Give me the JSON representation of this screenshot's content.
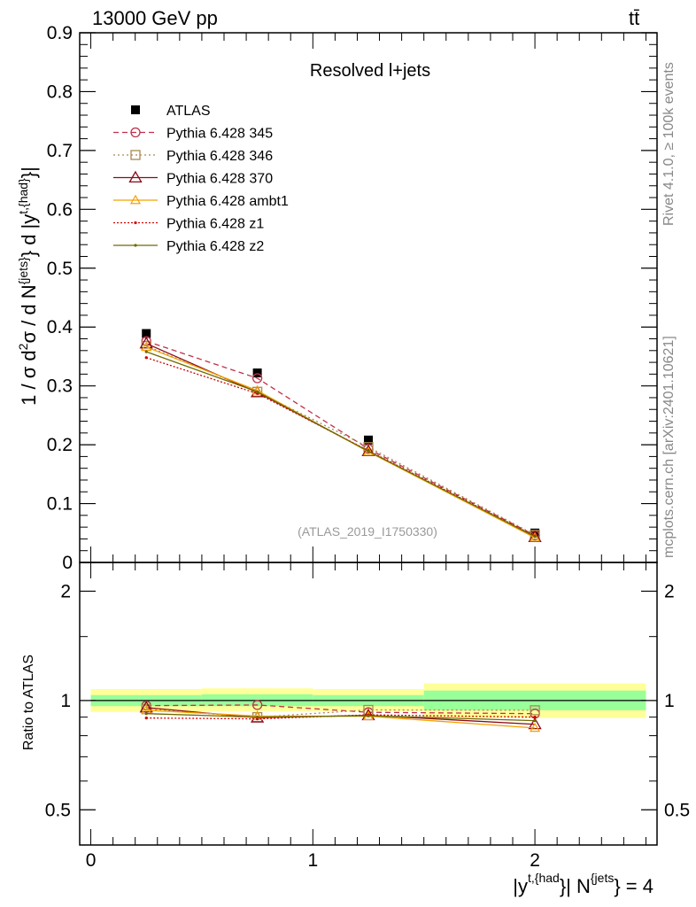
{
  "header": {
    "energy_label": "13000 GeV pp",
    "process_label": "tt̄"
  },
  "side_labels": {
    "rivet": "Rivet 4.1.0, ≥ 100k events",
    "mcplots": "mcplots.cern.ch [arXiv:2401.10621]"
  },
  "analysis_ref": "(ATLAS_2019_I1750330)",
  "colors": {
    "ATLAS": "#000000",
    "Pythia 6.428 345": "#c0304a",
    "Pythia 6.428 346": "#a88a50",
    "Pythia 6.428 370": "#8b0a1a",
    "Pythia 6.428 ambt1": "#f5a000",
    "Pythia 6.428 z1": "#d00000",
    "Pythia 6.428 z2": "#6b6b00",
    "band_inner": "#99ff99",
    "band_outer": "#ffff99"
  },
  "chart_data": [
    {
      "type": "line",
      "title": "Resolved l+jets",
      "ylabel_parts": [
        "1 / σ d",
        "2",
        "σ / d N",
        "{jets}",
        "} d |y",
        "t,{had}",
        "}|"
      ],
      "xlim": [
        -0.05,
        2.55
      ],
      "ylim": [
        0,
        0.9
      ],
      "y_ticks": [
        0,
        0.1,
        0.2,
        0.3,
        0.4,
        0.5,
        0.6,
        0.7,
        0.8,
        0.9
      ],
      "y_tick_labels": [
        "0",
        "0.1",
        "0.2",
        "0.3",
        "0.4",
        "0.5",
        "0.6",
        "0.7",
        "0.8",
        "0.9"
      ],
      "x": [
        0.25,
        0.75,
        1.25,
        2.0
      ],
      "series": [
        {
          "name": "ATLAS",
          "values": [
            0.389,
            0.322,
            0.208,
            0.05
          ]
        },
        {
          "name": "Pythia 6.428 345",
          "values": [
            0.376,
            0.313,
            0.193,
            0.046
          ]
        },
        {
          "name": "Pythia 6.428 346",
          "values": [
            0.368,
            0.29,
            0.196,
            0.047
          ]
        },
        {
          "name": "Pythia 6.428 370",
          "values": [
            0.372,
            0.289,
            0.189,
            0.043
          ]
        },
        {
          "name": "Pythia 6.428 ambt1",
          "values": [
            0.366,
            0.292,
            0.188,
            0.042
          ]
        },
        {
          "name": "Pythia 6.428 z1",
          "values": [
            0.348,
            0.287,
            0.19,
            0.045
          ]
        },
        {
          "name": "Pythia 6.428 z2",
          "values": [
            0.358,
            0.29,
            0.189,
            0.044
          ]
        }
      ],
      "legend": [
        "ATLAS",
        "Pythia 6.428 345",
        "Pythia 6.428 346",
        "Pythia 6.428 370",
        "Pythia 6.428 ambt1",
        "Pythia 6.428 z1",
        "Pythia 6.428 z2"
      ]
    },
    {
      "type": "line",
      "ylabel": "Ratio to ATLAS",
      "xlabel_parts": [
        "|y",
        "t,{had",
        "}| N",
        "{jets",
        "} = 4"
      ],
      "xlim": [
        -0.05,
        2.55
      ],
      "ylim": [
        0.4,
        2.4
      ],
      "y_scale": "log",
      "y_ticks": [
        0.5,
        1,
        2
      ],
      "y_tick_labels": [
        "0.5",
        "1",
        "2"
      ],
      "x_ticks": [
        0,
        1,
        2
      ],
      "x_tick_labels": [
        "0",
        "1",
        "2"
      ],
      "bins": [
        [
          0.0,
          0.5
        ],
        [
          0.5,
          1.0
        ],
        [
          1.0,
          1.5
        ],
        [
          1.5,
          2.5
        ]
      ],
      "band_inner": [
        [
          0.965,
          1.035
        ],
        [
          0.965,
          1.04
        ],
        [
          0.965,
          1.035
        ],
        [
          0.94,
          1.065
        ]
      ],
      "band_outer": [
        [
          0.93,
          1.075
        ],
        [
          0.935,
          1.08
        ],
        [
          0.935,
          1.075
        ],
        [
          0.895,
          1.115
        ]
      ],
      "x": [
        0.25,
        0.75,
        1.25,
        2.0
      ],
      "series": [
        {
          "name": "Pythia 6.428 345",
          "values": [
            0.968,
            0.972,
            0.928,
            0.92
          ]
        },
        {
          "name": "Pythia 6.428 346",
          "values": [
            0.946,
            0.9,
            0.942,
            0.94
          ]
        },
        {
          "name": "Pythia 6.428 370",
          "values": [
            0.956,
            0.897,
            0.91,
            0.86
          ]
        },
        {
          "name": "Pythia 6.428 ambt1",
          "values": [
            0.94,
            0.906,
            0.905,
            0.84
          ]
        },
        {
          "name": "Pythia 6.428 z1",
          "values": [
            0.895,
            0.89,
            0.913,
            0.9
          ]
        },
        {
          "name": "Pythia 6.428 z2",
          "values": [
            0.92,
            0.9,
            0.908,
            0.88
          ]
        }
      ]
    }
  ]
}
